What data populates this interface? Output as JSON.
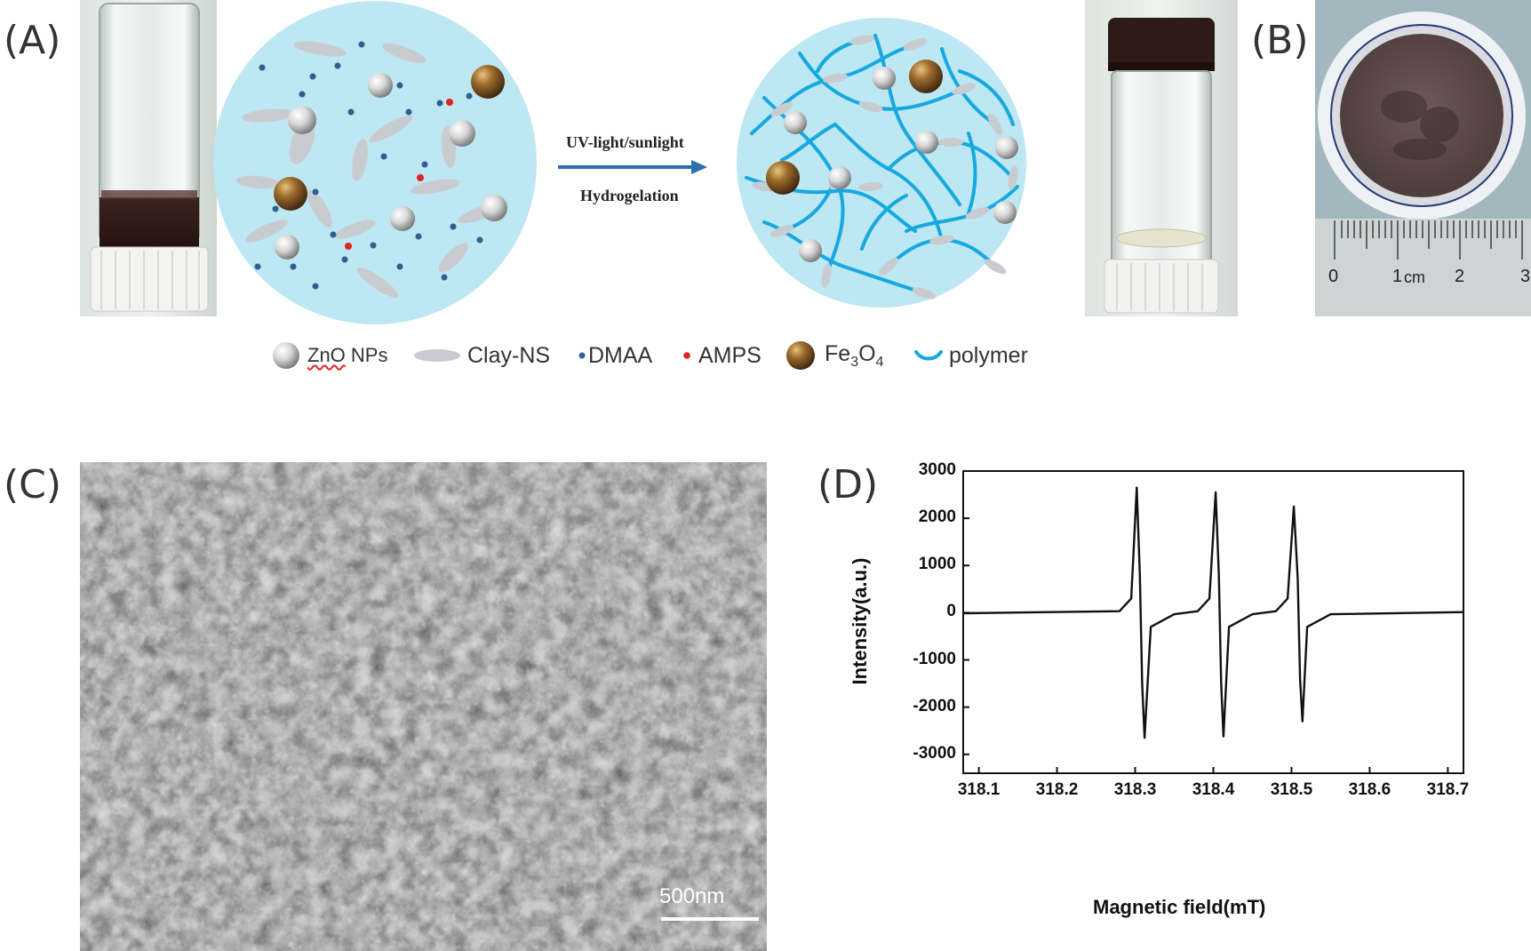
{
  "panels": {
    "a": "(A)",
    "b": "(B)",
    "c": "(C)",
    "d": "(D)"
  },
  "arrow": {
    "top": "UV-light/sunlight",
    "bottom": "Hydrogelation"
  },
  "legend": {
    "zno_word": "ZnO",
    "zno_rest": " NPs",
    "clay": "Clay-NS",
    "dmaa": "DMAA",
    "amps": "AMPS",
    "fe_base": "Fe",
    "fe_sub1": "3",
    "fe_mid": "O",
    "fe_sub2": "4",
    "polymer": "polymer"
  },
  "ruler": {
    "l0": "0",
    "l1": "1",
    "unit": "cm",
    "l2": "2",
    "l3": "3"
  },
  "sem": {
    "scalebar": "500nm"
  },
  "colors": {
    "circle_fill": "#bde7f2",
    "polymer": "#15a9e0",
    "dmaa": "#2d5f94",
    "amps": "#e02222",
    "arrow": "#2a6eb0",
    "clay": "#c8ccd0"
  },
  "chart_data": {
    "type": "line",
    "title": "",
    "xlabel": "Magnetic field(mT)",
    "ylabel": "Intensity(a.u.)",
    "xlim": [
      318.08,
      318.72
    ],
    "ylim": [
      -3400,
      3000
    ],
    "xticks": [
      318.1,
      318.2,
      318.3,
      318.4,
      318.5,
      318.6,
      318.7
    ],
    "yticks": [
      3000,
      2000,
      1000,
      0,
      -1000,
      -2000,
      -3000
    ],
    "x_tick_labels": [
      "318.1",
      "318.2",
      "318.3",
      "318.4",
      "318.5",
      "318.6",
      "318.7"
    ],
    "y_tick_labels": [
      "3000",
      "2000",
      "1000",
      "0",
      "-1000",
      "-2000",
      "-3000"
    ],
    "grid": false,
    "series": [
      {
        "x": [
          318.08,
          318.28,
          318.295,
          318.302,
          318.306,
          318.309,
          318.312,
          318.32,
          318.35,
          318.38,
          318.395,
          318.403,
          318.407,
          318.41,
          318.413,
          318.42,
          318.45,
          318.48,
          318.495,
          318.503,
          318.508,
          318.511,
          318.514,
          318.52,
          318.55,
          318.72
        ],
        "y": [
          0,
          20,
          300,
          2650,
          800,
          -1500,
          -2650,
          -300,
          -20,
          20,
          300,
          2550,
          800,
          -1500,
          -2620,
          -300,
          -20,
          20,
          300,
          2250,
          700,
          -1400,
          -2300,
          -300,
          -20,
          0
        ]
      }
    ]
  }
}
